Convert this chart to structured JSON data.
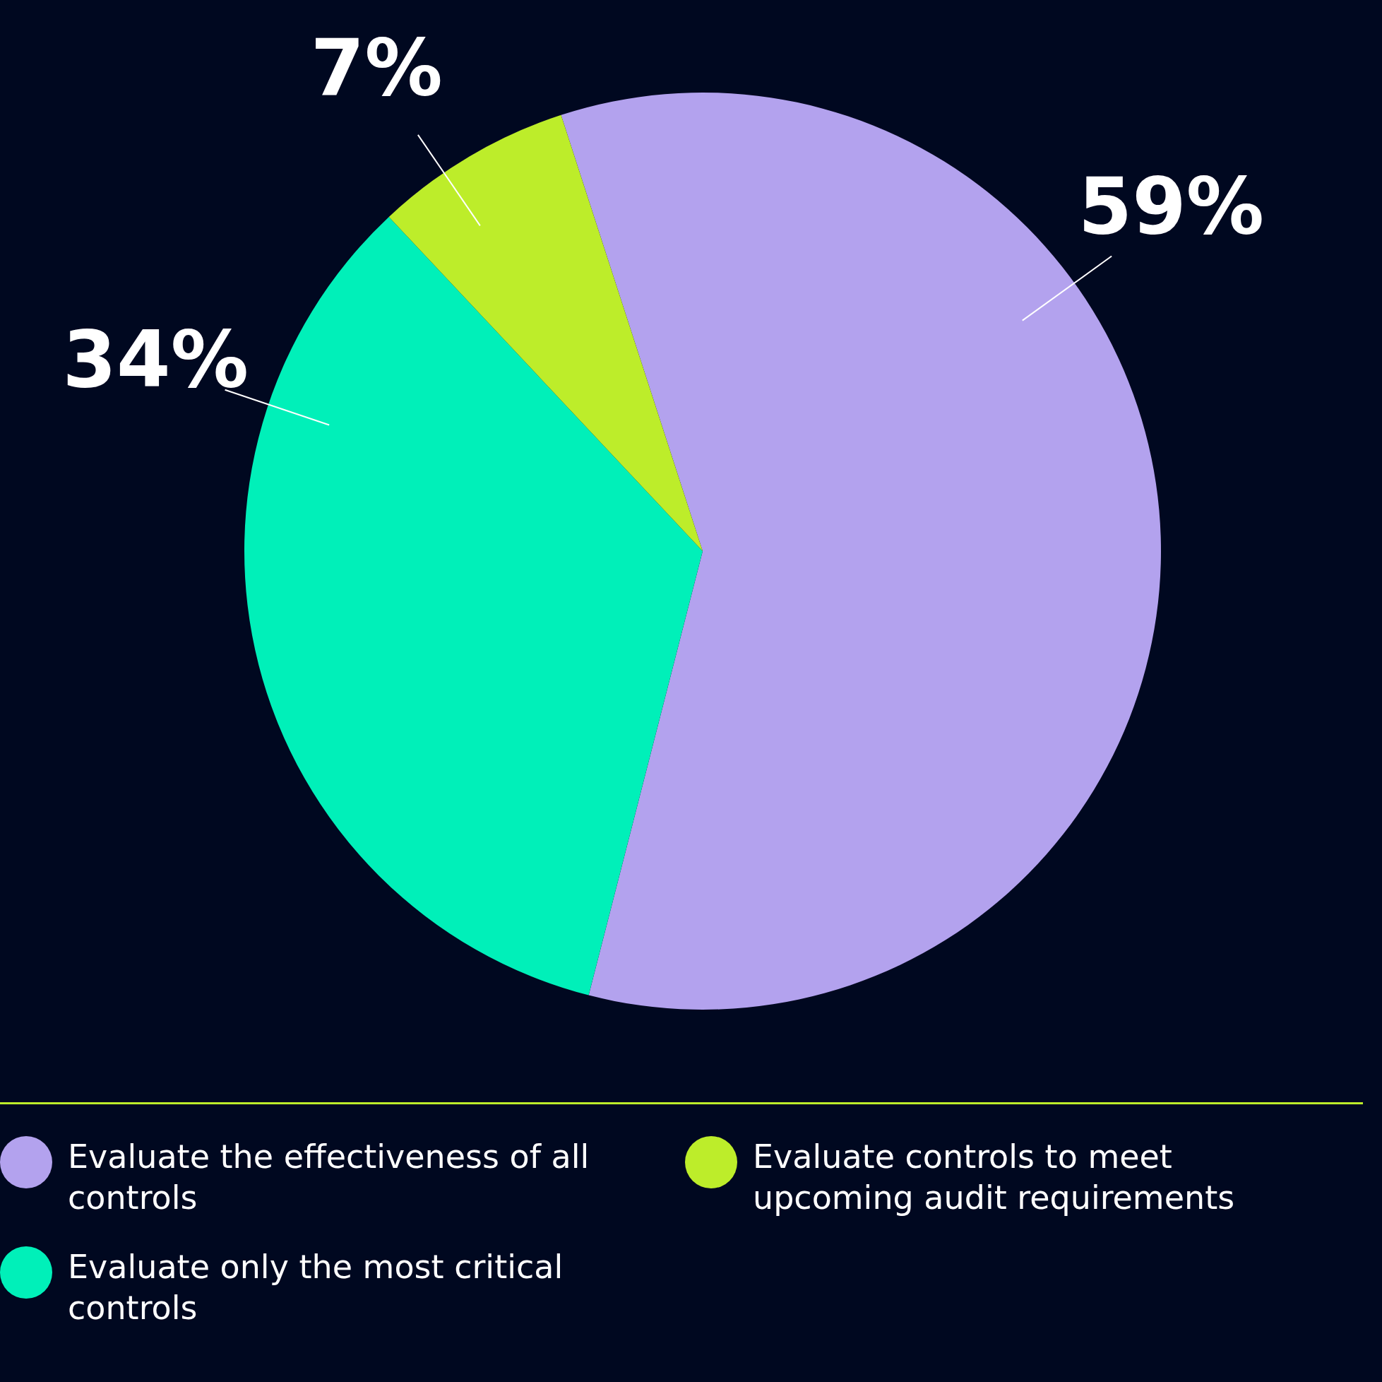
{
  "chart_data": {
    "type": "pie",
    "categories": [
      "Evaluate the effectiveness of all controls",
      "Evaluate only the most critical controls",
      "Evaluate controls to meet upcoming audit requirements"
    ],
    "values": [
      59,
      34,
      7
    ],
    "colors": [
      "#b3a2ee",
      "#00f0b9",
      "#bded2a"
    ],
    "value_labels": [
      "59%",
      "34%",
      "7%"
    ],
    "legend": "bottom"
  }
}
